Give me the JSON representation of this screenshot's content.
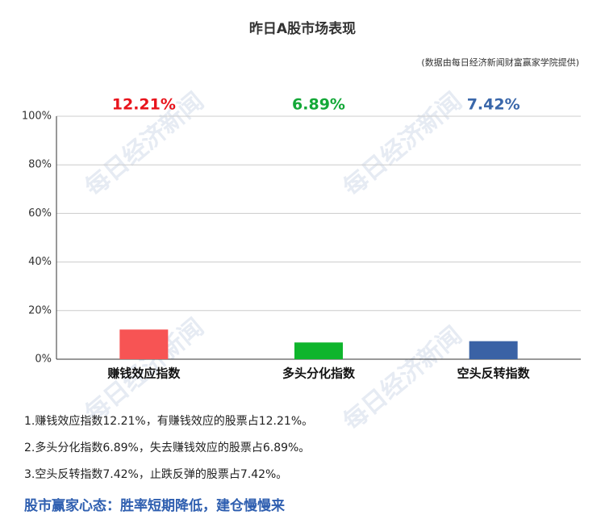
{
  "chart_data": {
    "type": "bar",
    "title": "昨日A股市场表现",
    "subtitle": "(数据由每日经济新闻财富赢家学院提供)",
    "watermark": "每日经济新闻",
    "categories": [
      "赚钱效应指数",
      "多头分化指数",
      "空头反转指数"
    ],
    "values": [
      12.21,
      6.89,
      7.42
    ],
    "value_labels": [
      "12.21%",
      "6.89%",
      "7.42%"
    ],
    "colors": [
      "#f75454",
      "#0fb52c",
      "#3a62a5"
    ],
    "label_colors": [
      "#e8141c",
      "#14a838",
      "#3a67aa"
    ],
    "ylim": [
      0,
      100
    ],
    "yticks": [
      {
        "value": 0,
        "label": "0%"
      },
      {
        "value": 20,
        "label": "20%"
      },
      {
        "value": 40,
        "label": "40%"
      },
      {
        "value": 60,
        "label": "60%"
      },
      {
        "value": 80,
        "label": "80%"
      },
      {
        "value": 100,
        "label": "100%"
      }
    ],
    "grid": true
  },
  "notes": [
    "1.赚钱效应指数12.21%，有赚钱效应的股票占12.21%。",
    "2.多头分化指数6.89%，失去赚钱效应的股票占6.89%。",
    "3.空头反转指数7.42%，止跌反弹的股票占7.42%。"
  ],
  "conclusion": "股市赢家心态：胜率短期降低，建仓慢慢来"
}
